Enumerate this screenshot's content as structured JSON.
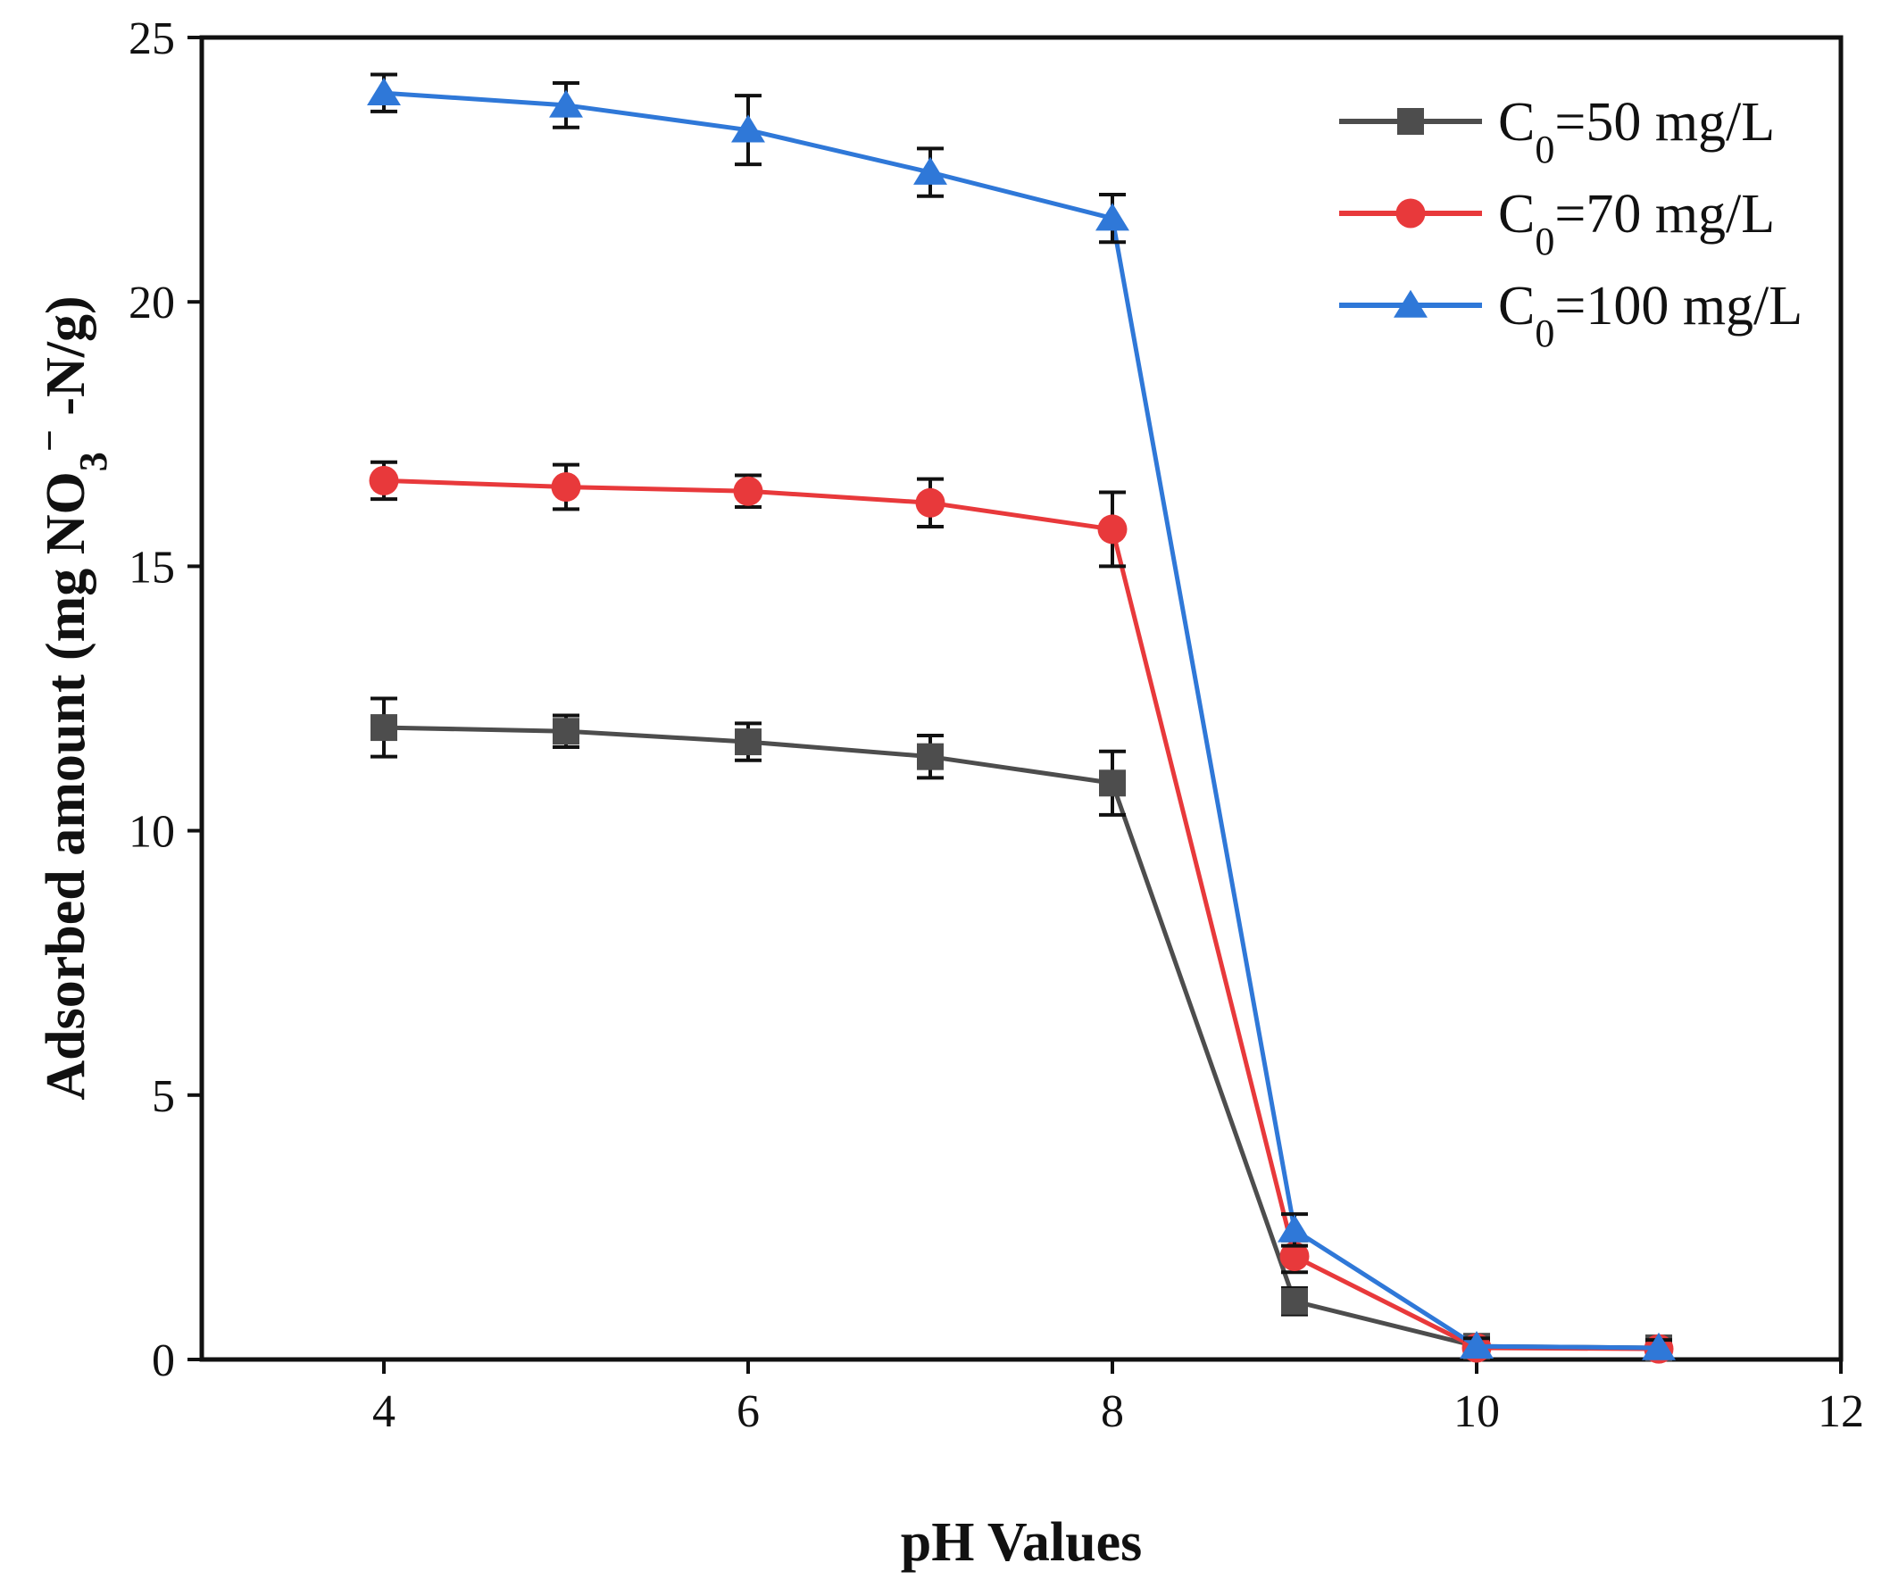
{
  "chart_data": {
    "type": "line",
    "title": "",
    "xlabel": "pH Values",
    "ylabel": {
      "prefix": "Adsorbed amount (mg NO",
      "sub": "3",
      "sup": "−",
      "suffix": " -N/g)"
    },
    "xlim": [
      3,
      12
    ],
    "ylim": [
      0,
      25
    ],
    "xticks": [
      4,
      6,
      8,
      10,
      12
    ],
    "yticks": [
      0,
      5,
      10,
      15,
      20,
      25
    ],
    "grid": false,
    "legend_position": "top-right",
    "x": [
      4,
      5,
      6,
      7,
      8,
      9,
      10,
      11
    ],
    "series": [
      {
        "name": "C0=50 mg/L",
        "label_main": "C",
        "label_sub": "0",
        "label_rest": "=50 mg/L",
        "marker": "square",
        "color": "#4d4d4d",
        "values": [
          11.95,
          11.88,
          11.68,
          11.4,
          10.9,
          1.1,
          0.25,
          0.22
        ],
        "errors": [
          0.55,
          0.3,
          0.35,
          0.4,
          0.6,
          0.25,
          0.15,
          0.15
        ]
      },
      {
        "name": "C0=70 mg/L",
        "label_main": "C",
        "label_sub": "0",
        "label_rest": "=70 mg/L",
        "marker": "circle",
        "color": "#e8393b",
        "values": [
          16.62,
          16.5,
          16.42,
          16.2,
          15.7,
          1.95,
          0.22,
          0.2
        ],
        "errors": [
          0.35,
          0.42,
          0.3,
          0.45,
          0.7,
          0.3,
          0.15,
          0.15
        ]
      },
      {
        "name": "C0=100 mg/L",
        "label_main": "C",
        "label_sub": "0",
        "label_rest": "=100 mg/L",
        "marker": "triangle",
        "color": "#2f78d8",
        "values": [
          23.95,
          23.72,
          23.25,
          22.45,
          21.58,
          2.45,
          0.25,
          0.22
        ],
        "errors": [
          0.35,
          0.42,
          0.65,
          0.45,
          0.45,
          0.3,
          0.15,
          0.15
        ]
      }
    ]
  }
}
